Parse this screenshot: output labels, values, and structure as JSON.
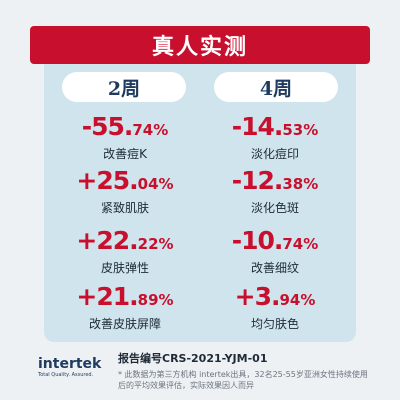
{
  "title": "真人实测",
  "columns": [
    {
      "label": "2周"
    },
    {
      "label": "4周"
    }
  ],
  "stats": [
    {
      "main": "-55.",
      "small": "74%",
      "label": "改善痘K"
    },
    {
      "main": "-14.",
      "small": "53%",
      "label": "淡化痘印"
    },
    {
      "main": "+25.",
      "small": "04%",
      "label": "紧致肌肤"
    },
    {
      "main": "-12.",
      "small": "38%",
      "label": "淡化色斑"
    },
    {
      "main": "+22.",
      "small": "22%",
      "label": "皮肤弹性"
    },
    {
      "main": "-10.",
      "small": "74%",
      "label": "改善细纹"
    },
    {
      "main": "+21.",
      "small": "89%",
      "label": "改善皮肤屏障"
    },
    {
      "main": "+3.",
      "small": "94%",
      "label": "均匀肤色"
    }
  ],
  "footer": {
    "logo_word": "intertek",
    "logo_tagline": "Total Quality. Assured.",
    "report_no": "报告编号CRS-2021-YJM-01",
    "disclaimer": "* 此数据为第三方机构 intertek出具，32名25-55岁亚洲女性持续使用后的平均效果评估，实际效果因人而异"
  },
  "colors": {
    "accent": "#c8102e",
    "panel": "#cfe4ec",
    "background": "#eef1f3",
    "text_dark": "#1e3a5f"
  }
}
